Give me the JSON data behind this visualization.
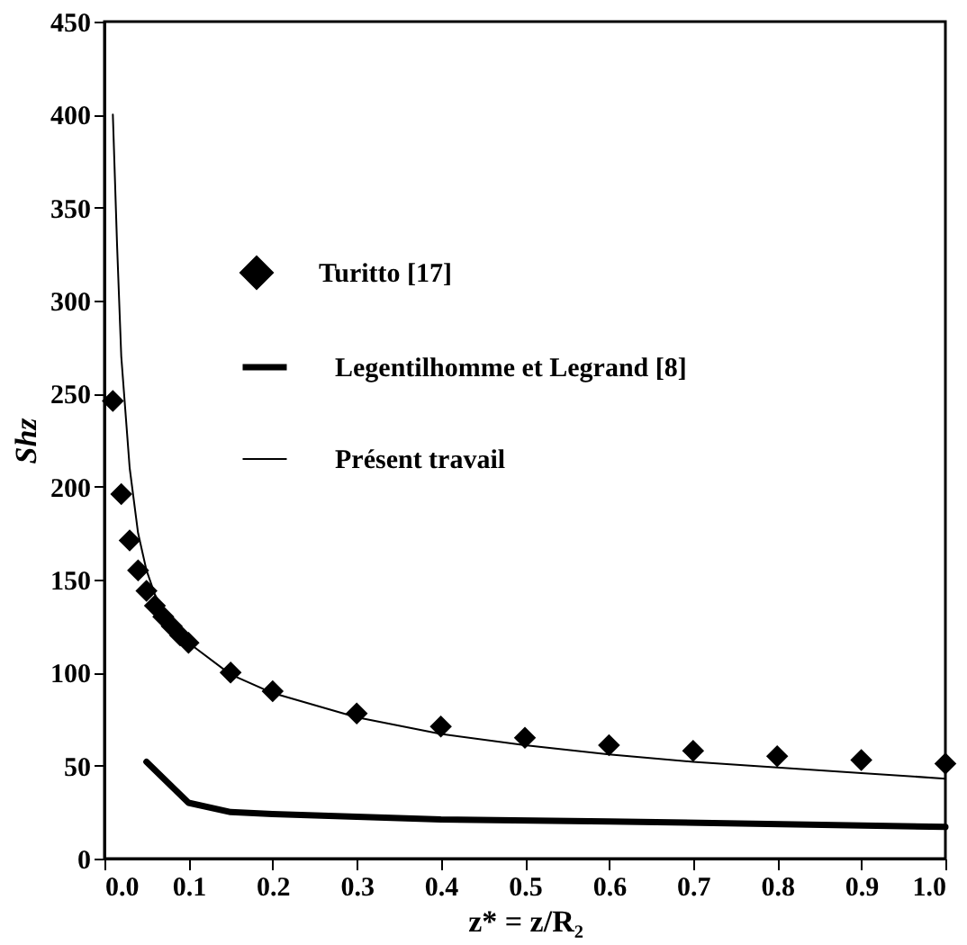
{
  "chart_data": {
    "type": "line",
    "xlabel": "z* = z/R₂",
    "ylabel": "Shz",
    "x": [
      0.01,
      0.02,
      0.03,
      0.04,
      0.05,
      0.06,
      0.07,
      0.08,
      0.09,
      0.1,
      0.15,
      0.2,
      0.3,
      0.4,
      0.5,
      0.6,
      0.7,
      0.8,
      0.9,
      1.0
    ],
    "series": [
      {
        "name": "Turitto [17]",
        "type": "scatter",
        "marker": "diamond",
        "color": "#000000",
        "values": [
          246,
          196,
          171,
          155,
          144,
          136,
          130,
          125,
          120,
          116,
          100,
          90,
          78,
          71,
          65,
          61,
          58,
          55,
          53,
          51
        ]
      },
      {
        "name": "Legentilhomme et Legrand [8]",
        "color": "#000000",
        "x": [
          0.05,
          0.1,
          0.15,
          0.2,
          0.4,
          0.6,
          1.0
        ],
        "values": [
          52,
          30,
          25,
          24,
          21,
          20,
          17
        ]
      },
      {
        "name": "Présent travail",
        "color": "#000000",
        "x": [
          0.01,
          0.015,
          0.02,
          0.03,
          0.04,
          0.05,
          0.06,
          0.07,
          0.08,
          0.1,
          0.15,
          0.2,
          0.3,
          0.4,
          0.5,
          0.6,
          0.7,
          0.8,
          0.9,
          1.0
        ],
        "values": [
          400,
          330,
          270,
          210,
          175,
          155,
          142,
          133,
          126,
          116,
          99,
          89,
          76,
          67,
          61,
          56,
          52,
          49,
          46,
          43
        ]
      }
    ],
    "xlim": [
      0,
      1.0
    ],
    "xticks": [
      {
        "value": 0,
        "label": "0.0"
      },
      0.1,
      0.2,
      0.3,
      0.4,
      0.5,
      0.6,
      0.7,
      0.8,
      0.9,
      {
        "value": 1,
        "label": "1.0"
      }
    ],
    "ylim": [
      0,
      450
    ],
    "yticks": [
      0,
      50,
      100,
      150,
      200,
      250,
      300,
      350,
      400,
      450
    ],
    "grid": false,
    "legend": "top",
    "line_style": "solid"
  }
}
